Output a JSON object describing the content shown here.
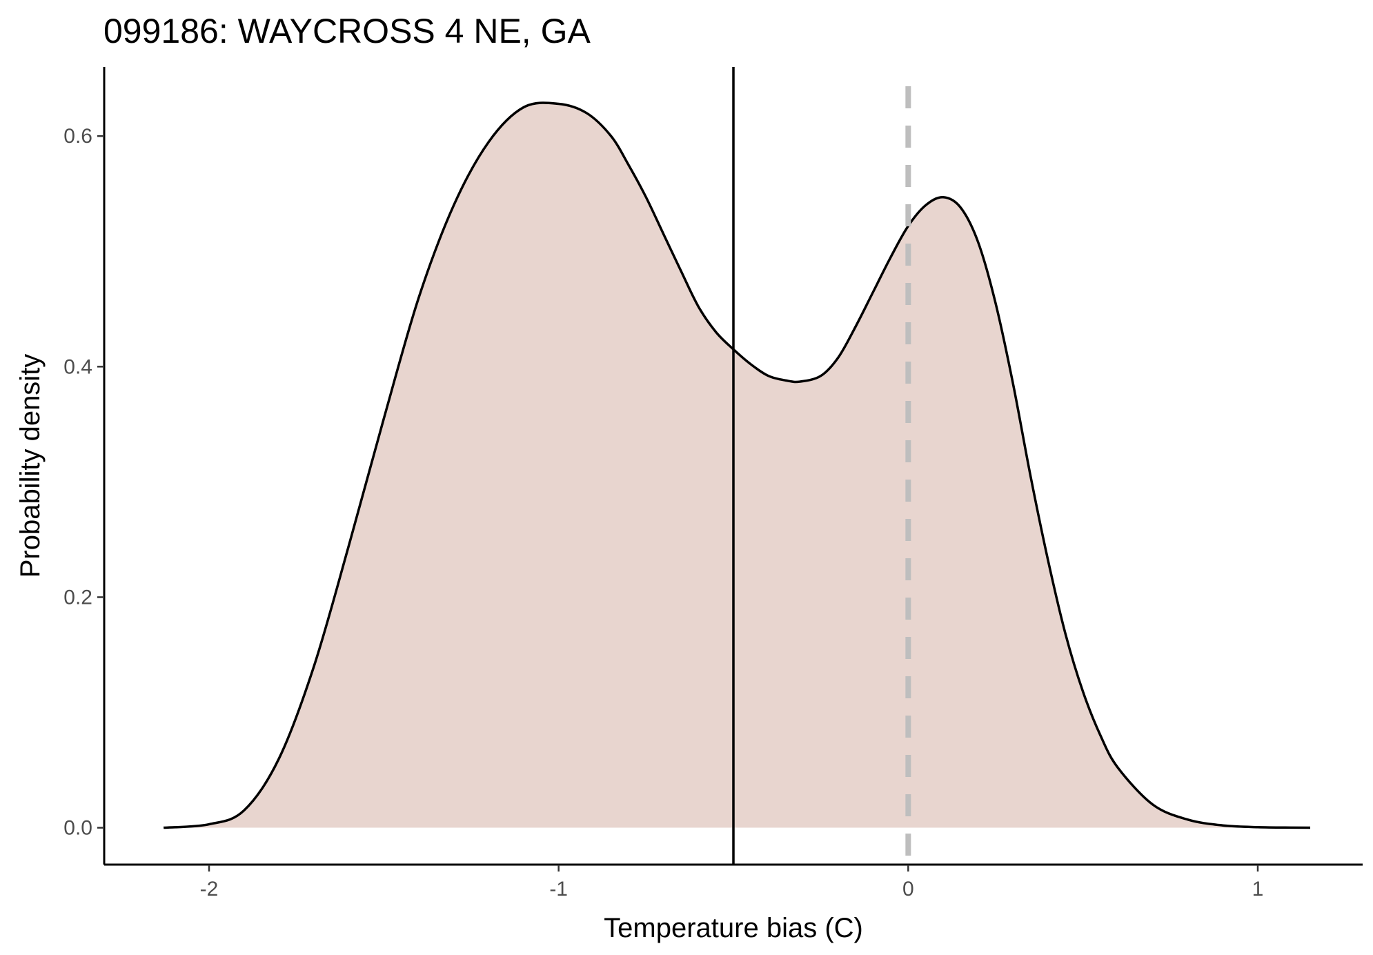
{
  "chart_data": {
    "type": "area",
    "title": "099186: WAYCROSS 4 NE, GA",
    "xlabel": "Temperature bias (C)",
    "ylabel": "Probability density",
    "xlim": [
      -2.3,
      1.3
    ],
    "ylim": [
      -0.032,
      0.66
    ],
    "x_ticks": [
      -2,
      -1,
      0,
      1
    ],
    "x_tick_labels": [
      "-2",
      "-1",
      "0",
      "1"
    ],
    "y_ticks": [
      0.0,
      0.2,
      0.4,
      0.6
    ],
    "y_tick_labels": [
      "0.0",
      "0.2",
      "0.4",
      "0.6"
    ],
    "grid": false,
    "legend": "none",
    "fill_color": "#e8d5cf",
    "line_color": "#000000",
    "reference_line_color": "#bebebe",
    "series": [
      {
        "x": [
          -2.13,
          -2.0,
          -1.9,
          -1.8,
          -1.7,
          -1.6,
          -1.5,
          -1.4,
          -1.3,
          -1.2,
          -1.1,
          -1.0,
          -0.92,
          -0.85,
          -0.8,
          -0.75,
          -0.7,
          -0.65,
          -0.6,
          -0.55,
          -0.5,
          -0.45,
          -0.4,
          -0.35,
          -0.31,
          -0.25,
          -0.2,
          -0.15,
          -0.1,
          -0.05,
          0.0,
          0.05,
          0.1,
          0.15,
          0.2,
          0.25,
          0.3,
          0.35,
          0.4,
          0.45,
          0.5,
          0.55,
          0.6,
          0.7,
          0.8,
          0.9,
          1.0,
          1.1,
          1.15
        ],
        "y": [
          0.0,
          0.003,
          0.015,
          0.06,
          0.14,
          0.245,
          0.355,
          0.46,
          0.54,
          0.595,
          0.625,
          0.628,
          0.62,
          0.6,
          0.575,
          0.547,
          0.515,
          0.483,
          0.452,
          0.43,
          0.415,
          0.402,
          0.392,
          0.388,
          0.387,
          0.392,
          0.408,
          0.435,
          0.465,
          0.495,
          0.522,
          0.54,
          0.547,
          0.538,
          0.508,
          0.455,
          0.385,
          0.305,
          0.232,
          0.168,
          0.118,
          0.08,
          0.052,
          0.02,
          0.007,
          0.002,
          0.0005,
          0.0001,
          0.0
        ]
      }
    ],
    "reference_lines": [
      {
        "x": -0.5,
        "style": "solid"
      },
      {
        "x": 0.0,
        "style": "dashed"
      }
    ]
  }
}
